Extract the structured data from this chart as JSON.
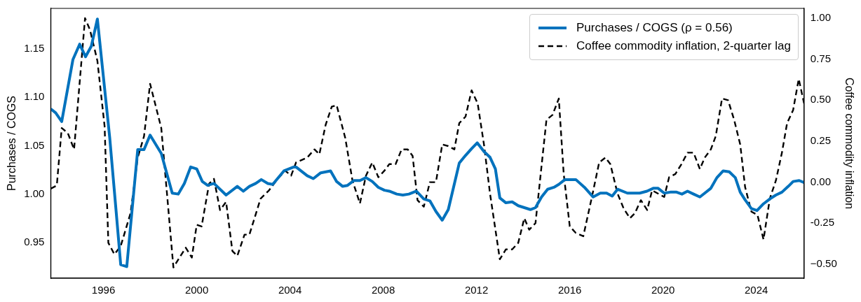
{
  "chart_data": {
    "type": "line",
    "ylabel": "Purchases / COGS",
    "y2label": "Coffee commodity inflation",
    "xlim": [
      1993.74,
      2026.05
    ],
    "xticks": [
      1996,
      2000,
      2004,
      2008,
      2012,
      2016,
      2020,
      2024
    ],
    "ylim": [
      0.913,
      1.192
    ],
    "yticks": [
      0.95,
      {
        "value": 1.0,
        "label": "1.00"
      },
      1.05,
      {
        "value": 1.1,
        "label": "1.10"
      },
      1.15
    ],
    "y2lim": [
      -0.586,
      1.06
    ],
    "y2ticks": [
      {
        "value": -0.5,
        "label": "−0.50"
      },
      -0.25,
      {
        "value": 0,
        "label": "0.00"
      },
      0.25,
      {
        "value": 0.5,
        "label": "0.50"
      },
      0.75,
      {
        "value": 1,
        "label": "1.00"
      }
    ],
    "grid": false,
    "legend": "top right",
    "marker": "none",
    "series": [
      {
        "name": "Purchases / COGS (ρ = 0.56)",
        "color": "#0072bd",
        "line_style": "solid",
        "x": [
          1993.74,
          1993.95,
          1994.21,
          1994.69,
          1994.98,
          1995.23,
          1995.48,
          1995.74,
          1996.27,
          1996.53,
          1996.74,
          1997.0,
          1997.47,
          1997.74,
          1998.0,
          1998.48,
          1998.95,
          1999.21,
          1999.47,
          1999.74,
          2000.0,
          2000.24,
          2000.47,
          2000.74,
          2001.26,
          2001.74,
          2002.0,
          2002.26,
          2002.53,
          2002.77,
          2003.05,
          2003.26,
          2003.74,
          2004.16,
          2004.26,
          2004.74,
          2005.0,
          2005.32,
          2005.74,
          2006.0,
          2006.26,
          2006.47,
          2006.74,
          2007.0,
          2007.26,
          2007.53,
          2007.79,
          2008.05,
          2008.26,
          2008.58,
          2008.84,
          2009.1,
          2009.42,
          2009.74,
          2010.0,
          2010.26,
          2010.53,
          2010.79,
          2011.26,
          2011.53,
          2011.79,
          2012.03,
          2012.32,
          2012.58,
          2012.81,
          2013.0,
          2013.26,
          2013.53,
          2013.79,
          2014.05,
          2014.31,
          2014.53,
          2014.79,
          2015.05,
          2015.32,
          2015.53,
          2015.79,
          2016.26,
          2016.63,
          2016.89,
          2017.0,
          2017.31,
          2017.58,
          2017.82,
          2018.05,
          2018.47,
          2019.0,
          2019.31,
          2019.58,
          2019.79,
          2020.05,
          2020.31,
          2020.58,
          2020.81,
          2021.05,
          2021.31,
          2021.58,
          2021.79,
          2022.05,
          2022.31,
          2022.58,
          2022.84,
          2023.1,
          2023.31,
          2023.52,
          2023.79,
          2024.03,
          2024.31,
          2024.58,
          2024.84,
          2025.1,
          2025.37,
          2025.58,
          2025.84,
          2026.05
        ],
        "values": [
          1.088,
          1.084,
          1.075,
          1.139,
          1.155,
          1.142,
          1.153,
          1.181,
          1.058,
          0.986,
          0.927,
          0.925,
          1.046,
          1.046,
          1.061,
          1.042,
          1.001,
          1.0,
          1.011,
          1.028,
          1.026,
          1.013,
          1.009,
          1.011,
          0.999,
          1.008,
          1.003,
          1.008,
          1.011,
          1.015,
          1.011,
          1.01,
          1.024,
          1.028,
          1.028,
          1.019,
          1.016,
          1.022,
          1.024,
          1.013,
          1.008,
          1.009,
          1.014,
          1.014,
          1.017,
          1.013,
          1.007,
          1.004,
          1.003,
          1.0,
          0.999,
          1.0,
          1.003,
          0.995,
          0.993,
          0.982,
          0.973,
          0.984,
          1.032,
          1.04,
          1.047,
          1.053,
          1.044,
          1.038,
          1.026,
          0.996,
          0.991,
          0.992,
          0.988,
          0.986,
          0.984,
          0.986,
          0.997,
          1.005,
          1.007,
          1.01,
          1.015,
          1.015,
          1.007,
          1.0,
          0.997,
          1.001,
          1.001,
          0.998,
          1.005,
          1.001,
          1.001,
          1.003,
          1.006,
          1.006,
          1.001,
          1.002,
          1.002,
          1.0,
          1.003,
          1.0,
          0.997,
          1.001,
          1.006,
          1.017,
          1.024,
          1.023,
          1.017,
          1.002,
          0.994,
          0.985,
          0.983,
          0.99,
          0.995,
          0.999,
          1.002,
          1.008,
          1.013,
          1.014,
          1.012
        ]
      },
      {
        "name": "Coffee commodity inflation, 2-quarter lag",
        "color": "#000000",
        "line_style": "dashed",
        "axis": "y2",
        "x": [
          1993.74,
          1994.0,
          1994.21,
          1994.47,
          1994.74,
          1995.21,
          1995.42,
          1995.74,
          1996.05,
          1996.21,
          1996.47,
          1996.74,
          1997.16,
          1997.47,
          1997.74,
          1998.0,
          1998.48,
          1999.0,
          1999.26,
          1999.53,
          1999.79,
          2000.0,
          2000.21,
          2000.53,
          2000.74,
          2001.0,
          2001.26,
          2001.53,
          2001.74,
          2002.05,
          2002.26,
          2002.74,
          2003.1,
          2003.47,
          2003.79,
          2004.05,
          2004.26,
          2004.74,
          2005.05,
          2005.26,
          2005.53,
          2005.79,
          2006.0,
          2006.37,
          2006.68,
          2007.0,
          2007.26,
          2007.53,
          2007.79,
          2008.05,
          2008.26,
          2008.53,
          2008.79,
          2009.05,
          2009.26,
          2009.47,
          2009.74,
          2010.0,
          2010.26,
          2010.53,
          2010.79,
          2011.05,
          2011.26,
          2011.53,
          2011.79,
          2012.05,
          2012.32,
          2012.58,
          2012.79,
          2013.0,
          2013.26,
          2013.53,
          2013.79,
          2014.05,
          2014.26,
          2014.53,
          2014.79,
          2015.0,
          2015.26,
          2015.53,
          2015.74,
          2016.0,
          2016.26,
          2016.58,
          2016.95,
          2017.26,
          2017.53,
          2017.74,
          2018.05,
          2018.31,
          2018.58,
          2018.79,
          2019.05,
          2019.32,
          2019.53,
          2019.79,
          2020.05,
          2020.26,
          2020.53,
          2020.79,
          2021.05,
          2021.31,
          2021.58,
          2021.79,
          2022.05,
          2022.26,
          2022.53,
          2022.79,
          2023.05,
          2023.31,
          2023.52,
          2023.79,
          2024.05,
          2024.31,
          2024.58,
          2024.84,
          2025.1,
          2025.32,
          2025.58,
          2025.82,
          2026.05
        ],
        "values": [
          -0.04,
          -0.02,
          0.33,
          0.3,
          0.2,
          1.0,
          0.93,
          0.74,
          0.34,
          -0.37,
          -0.44,
          -0.39,
          -0.19,
          0.15,
          0.28,
          0.6,
          0.33,
          -0.52,
          -0.46,
          -0.4,
          -0.46,
          -0.26,
          -0.27,
          -0.01,
          0.02,
          -0.17,
          -0.12,
          -0.42,
          -0.45,
          -0.32,
          -0.32,
          -0.1,
          -0.05,
          0.02,
          0.07,
          0.04,
          0.12,
          0.15,
          0.2,
          0.17,
          0.35,
          0.46,
          0.47,
          0.27,
          0.01,
          -0.13,
          0.04,
          0.12,
          0.03,
          0.07,
          0.11,
          0.11,
          0.2,
          0.2,
          0.16,
          -0.11,
          -0.15,
          0.0,
          0.0,
          0.23,
          0.22,
          0.2,
          0.36,
          0.4,
          0.56,
          0.48,
          0.23,
          -0.07,
          -0.27,
          -0.47,
          -0.41,
          -0.41,
          -0.37,
          -0.22,
          -0.29,
          -0.25,
          0.1,
          0.38,
          0.41,
          0.51,
          0.05,
          -0.27,
          -0.31,
          -0.33,
          -0.09,
          0.12,
          0.15,
          0.11,
          -0.07,
          -0.16,
          -0.22,
          -0.19,
          -0.11,
          -0.17,
          -0.05,
          -0.07,
          -0.09,
          0.03,
          0.05,
          0.11,
          0.18,
          0.18,
          0.08,
          0.15,
          0.2,
          0.28,
          0.51,
          0.5,
          0.38,
          0.23,
          -0.03,
          -0.18,
          -0.2,
          -0.35,
          -0.1,
          0.01,
          0.18,
          0.36,
          0.44,
          0.63,
          0.48
        ]
      }
    ]
  }
}
